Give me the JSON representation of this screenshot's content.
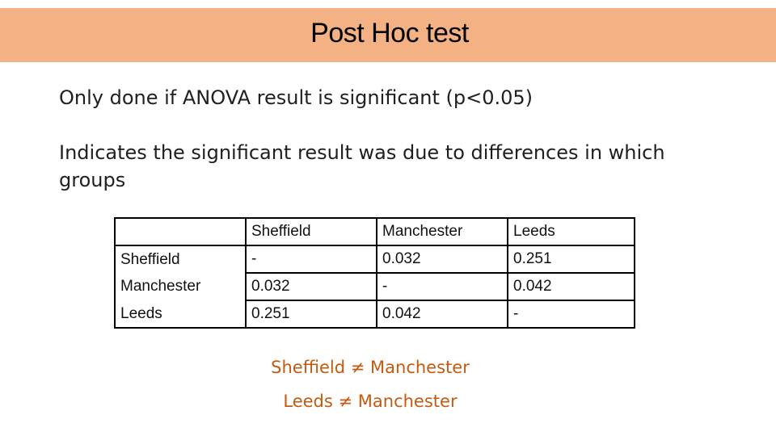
{
  "slide": {
    "title": "Post Hoc test",
    "bullets": [
      "Only done if ANOVA result is significant (p<0.05)",
      "Indicates the significant result was due to differences in which groups"
    ]
  },
  "table": {
    "header": [
      "",
      "Sheffield",
      "Manchester",
      "Leeds"
    ],
    "rows": [
      [
        "Sheffield",
        "-",
        "0.032",
        "0.251"
      ],
      [
        "Manchester",
        "0.032",
        "-",
        "0.042"
      ],
      [
        "Leeds",
        "0.251",
        "0.042",
        "-"
      ]
    ]
  },
  "conclusions": [
    "Sheffield ≠ Manchester",
    "Leeds ≠ Manchester"
  ],
  "colors": {
    "title_band": "#f4b183",
    "conclusion_text": "#c55a11"
  }
}
